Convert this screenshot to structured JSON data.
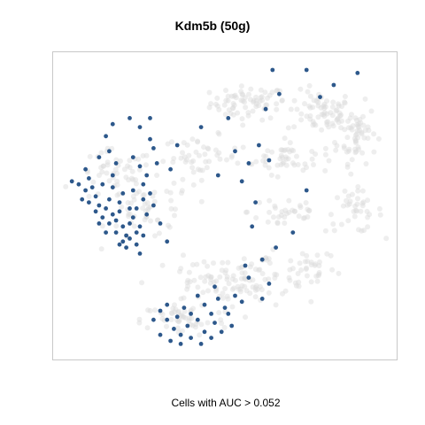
{
  "chart_data": {
    "type": "scatter",
    "title": "Kdm5b (50g)",
    "xlabel": "Cells with AUC > 0.052",
    "ylabel": "",
    "grid": false,
    "legend": "none",
    "xlim": [
      0,
      100
    ],
    "ylim": [
      0,
      100
    ],
    "colors": {
      "background_cells": "#d9d9d9",
      "active_cells": "#16467e"
    },
    "series": [
      {
        "role": "all cells",
        "color": "#d9d9d9",
        "clusters": [
          {
            "center": [
              57,
              84
            ],
            "spread": [
              8,
              4
            ],
            "n": 70
          },
          {
            "center": [
              78,
              81
            ],
            "spread": [
              7,
              5
            ],
            "n": 70
          },
          {
            "center": [
              89,
              74
            ],
            "spread": [
              4,
              7
            ],
            "n": 55
          },
          {
            "center": [
              68,
              66
            ],
            "spread": [
              10,
              4
            ],
            "n": 55
          },
          {
            "center": [
              43,
              66
            ],
            "spread": [
              8,
              5
            ],
            "n": 45
          },
          {
            "center": [
              88,
              48
            ],
            "spread": [
              6,
              5
            ],
            "n": 40
          },
          {
            "center": [
              68,
              48
            ],
            "spread": [
              8,
              5
            ],
            "n": 35
          },
          {
            "center": [
              18,
              60
            ],
            "spread": [
              8,
              6
            ],
            "n": 50
          },
          {
            "center": [
              28,
              48
            ],
            "spread": [
              9,
              7
            ],
            "n": 50
          },
          {
            "center": [
              60,
              27
            ],
            "spread": [
              10,
              5
            ],
            "n": 55
          },
          {
            "center": [
              45,
              24
            ],
            "spread": [
              12,
              6
            ],
            "n": 65
          },
          {
            "center": [
              38,
              12
            ],
            "spread": [
              9,
              4
            ],
            "n": 50
          },
          {
            "center": [
              76,
              30
            ],
            "spread": [
              5,
              6
            ],
            "n": 30
          }
        ]
      },
      {
        "role": "cells with AUC above threshold",
        "color": "#16467e",
        "points": [
          [
            5,
            58
          ],
          [
            7,
            57
          ],
          [
            10,
            59
          ],
          [
            9,
            55
          ],
          [
            8,
            52
          ],
          [
            10,
            51
          ],
          [
            12,
            53
          ],
          [
            13,
            50
          ],
          [
            12,
            48
          ],
          [
            14,
            46
          ],
          [
            15,
            49
          ],
          [
            16,
            52
          ],
          [
            17,
            47
          ],
          [
            18,
            45
          ],
          [
            16,
            44
          ],
          [
            19,
            48
          ],
          [
            20,
            43
          ],
          [
            18,
            41
          ],
          [
            21,
            40
          ],
          [
            20,
            38
          ],
          [
            19,
            37
          ],
          [
            22,
            39
          ],
          [
            22,
            44
          ],
          [
            23,
            46
          ],
          [
            24,
            41
          ],
          [
            25,
            43
          ],
          [
            26,
            40
          ],
          [
            24,
            49
          ],
          [
            26,
            52
          ],
          [
            27,
            47
          ],
          [
            11,
            56
          ],
          [
            14,
            57
          ],
          [
            17,
            56
          ],
          [
            20,
            54
          ],
          [
            23,
            55
          ],
          [
            26,
            57
          ],
          [
            28,
            54
          ],
          [
            29,
            50
          ],
          [
            15,
            41
          ],
          [
            21,
            36
          ],
          [
            24,
            37
          ],
          [
            22,
            49
          ],
          [
            19,
            51
          ],
          [
            13,
            44
          ],
          [
            27,
            60
          ],
          [
            25,
            63
          ],
          [
            23,
            66
          ],
          [
            18,
            64
          ],
          [
            16,
            68
          ],
          [
            15,
            73
          ],
          [
            17,
            77
          ],
          [
            22,
            79
          ],
          [
            25,
            76
          ],
          [
            28,
            72
          ],
          [
            29,
            69
          ],
          [
            30,
            64
          ],
          [
            34,
            62
          ],
          [
            36,
            70
          ],
          [
            28,
            79
          ],
          [
            13,
            66
          ],
          [
            17,
            60
          ],
          [
            9,
            62
          ],
          [
            31,
            44
          ],
          [
            33,
            38
          ],
          [
            25,
            34
          ],
          [
            43,
            76
          ],
          [
            51,
            79
          ],
          [
            53,
            68
          ],
          [
            48,
            60
          ],
          [
            57,
            64
          ],
          [
            58,
            43
          ],
          [
            61,
            32
          ],
          [
            57,
            26
          ],
          [
            55,
            18
          ],
          [
            51,
            14
          ],
          [
            47,
            11
          ],
          [
            44,
            8
          ],
          [
            42,
            12
          ],
          [
            39,
            10
          ],
          [
            37,
            7
          ],
          [
            35,
            9
          ],
          [
            33,
            12
          ],
          [
            31,
            15
          ],
          [
            29,
            12
          ],
          [
            31,
            7
          ],
          [
            34,
            5
          ],
          [
            37,
            4
          ],
          [
            40,
            6
          ],
          [
            43,
            4
          ],
          [
            46,
            6
          ],
          [
            49,
            8
          ],
          [
            52,
            10
          ],
          [
            50,
            16
          ],
          [
            53,
            20
          ],
          [
            48,
            19
          ],
          [
            46,
            14
          ],
          [
            40,
            14
          ],
          [
            36,
            13
          ],
          [
            33,
            17
          ],
          [
            38,
            16
          ],
          [
            44,
            17
          ],
          [
            42,
            20
          ],
          [
            47,
            23
          ],
          [
            56,
            30
          ],
          [
            61,
            19
          ],
          [
            63,
            24
          ],
          [
            65,
            36
          ],
          [
            70,
            41
          ],
          [
            74,
            55
          ],
          [
            63,
            65
          ],
          [
            62,
            82
          ],
          [
            78,
            86
          ],
          [
            82,
            90
          ],
          [
            64,
            95
          ],
          [
            74,
            95
          ],
          [
            66,
            87
          ],
          [
            89,
            94
          ],
          [
            60,
            70
          ],
          [
            55,
            58
          ],
          [
            59,
            51
          ]
        ]
      }
    ],
    "caption": "Cells with AUC > 0.052"
  }
}
